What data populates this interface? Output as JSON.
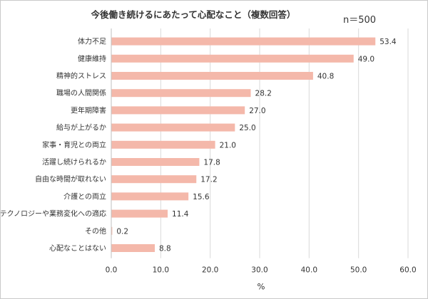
{
  "chart_data": {
    "type": "bar",
    "orientation": "horizontal",
    "title": "今後働き続けるにあたって心配なこと（複数回答）",
    "note": "n＝500",
    "xlabel": "%",
    "ylabel": "",
    "xlim": [
      0,
      60
    ],
    "x_ticks": [
      "0.0",
      "10.0",
      "20.0",
      "30.0",
      "40.0",
      "50.0",
      "60.0"
    ],
    "grid": true,
    "categories": [
      "体力不足",
      "健康維持",
      "精神的ストレス",
      "職場の人間関係",
      "更年期障害",
      "給与が上がるか",
      "家事・育児との両立",
      "活躍し続けられるか",
      "自由な時間が取れない",
      "介護との両立",
      "テクノロジーや業務変化への適応",
      "その他",
      "心配なことはない"
    ],
    "values": [
      53.4,
      49.0,
      40.8,
      28.2,
      27.0,
      25.0,
      21.0,
      17.8,
      17.2,
      15.6,
      11.4,
      0.2,
      8.8
    ],
    "value_labels": [
      "53.4",
      "49.0",
      "40.8",
      "28.2",
      "27.0",
      "25.0",
      "21.0",
      "17.8",
      "17.2",
      "15.6",
      "11.4",
      "0.2",
      "8.8"
    ],
    "bar_color": "#f4b8aa",
    "grid_color": "#d9d9d9"
  }
}
